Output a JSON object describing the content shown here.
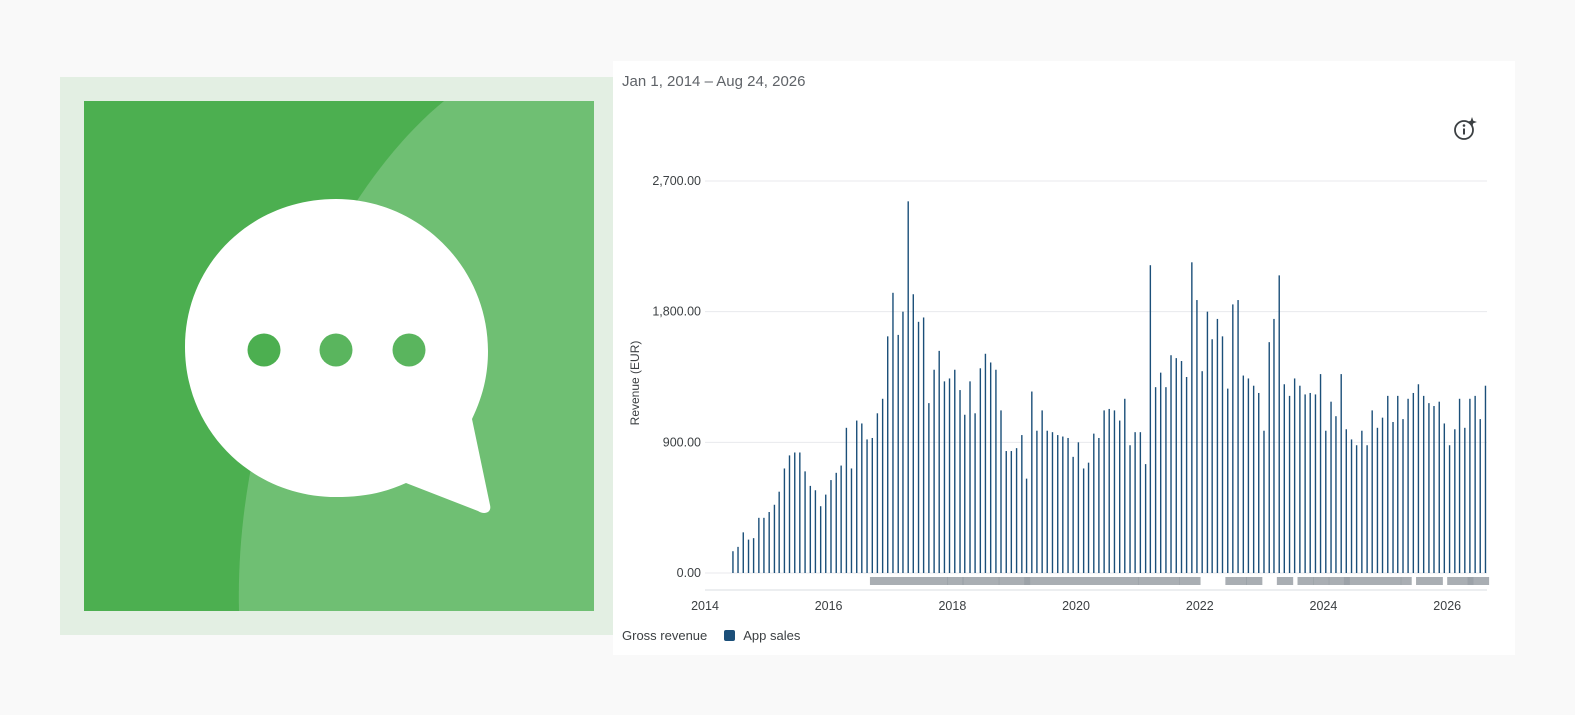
{
  "app_icon": {
    "name": "chat-bubble-icon",
    "background_color": "#4caf50",
    "bubble_color": "#ffffff",
    "dot_color": "#4caf50"
  },
  "header": {
    "date_range": "Jan 1, 2014 – Aug 24, 2026"
  },
  "insight_button": {
    "icon": "info-sparkle-icon"
  },
  "legend": {
    "title": "Gross revenue",
    "items": [
      {
        "label": "App sales",
        "color": "#1b4f79"
      }
    ]
  },
  "chart_data": {
    "type": "bar",
    "ylabel": "Revenue (EUR)",
    "xlabel": "",
    "ylim": [
      0,
      2700
    ],
    "yticks": [
      "0.00",
      "900.00",
      "1,800.00",
      "2,700.00"
    ],
    "ytick_values": [
      0,
      900,
      1800,
      2700
    ],
    "xticks": [
      "2014",
      "2016",
      "2018",
      "2020",
      "2022",
      "2024",
      "2026"
    ],
    "x_range": [
      "2014-01-01",
      "2026-08-24"
    ],
    "grid": true,
    "series": [
      {
        "name": "App sales",
        "color": "#1b4f79",
        "x": [
          "2014-06",
          "2014-07",
          "2014-08",
          "2014-09",
          "2014-10",
          "2014-11",
          "2014-12",
          "2015-01",
          "2015-02",
          "2015-03",
          "2015-04",
          "2015-05",
          "2015-06",
          "2015-07",
          "2015-08",
          "2015-09",
          "2015-10",
          "2015-11",
          "2015-12",
          "2016-01",
          "2016-02",
          "2016-03",
          "2016-04",
          "2016-05",
          "2016-06",
          "2016-07",
          "2016-08",
          "2016-09",
          "2016-10",
          "2016-11",
          "2016-12",
          "2017-01",
          "2017-02",
          "2017-03",
          "2017-04",
          "2017-05",
          "2017-06",
          "2017-07",
          "2017-08",
          "2017-09",
          "2017-10",
          "2017-11",
          "2017-12",
          "2018-01",
          "2018-02",
          "2018-03",
          "2018-04",
          "2018-05",
          "2018-06",
          "2018-07",
          "2018-08",
          "2018-09",
          "2018-10",
          "2018-11",
          "2018-12",
          "2019-01",
          "2019-02",
          "2019-03",
          "2019-04",
          "2019-05",
          "2019-06",
          "2019-07",
          "2019-08",
          "2019-09",
          "2019-10",
          "2019-11",
          "2019-12",
          "2020-01",
          "2020-02",
          "2020-03",
          "2020-04",
          "2020-05",
          "2020-06",
          "2020-07",
          "2020-08",
          "2020-09",
          "2020-10",
          "2020-11",
          "2020-12",
          "2021-01",
          "2021-02",
          "2021-03",
          "2021-04",
          "2021-05",
          "2021-06",
          "2021-07",
          "2021-08",
          "2021-09",
          "2021-10",
          "2021-11",
          "2021-12",
          "2022-01",
          "2022-02",
          "2022-03",
          "2022-04",
          "2022-05",
          "2022-06",
          "2022-07",
          "2022-08",
          "2022-09",
          "2022-10",
          "2022-11",
          "2022-12",
          "2023-01",
          "2023-02",
          "2023-03",
          "2023-04",
          "2023-05",
          "2023-06",
          "2023-07",
          "2023-08",
          "2023-09",
          "2023-10",
          "2023-11",
          "2023-12",
          "2024-01",
          "2024-02",
          "2024-03",
          "2024-04",
          "2024-05",
          "2024-06",
          "2024-07",
          "2024-08",
          "2024-09",
          "2024-10",
          "2024-11",
          "2024-12",
          "2025-01",
          "2025-02",
          "2025-03",
          "2025-04",
          "2025-05",
          "2025-06",
          "2025-07",
          "2025-08",
          "2025-09",
          "2025-10",
          "2025-11",
          "2025-12",
          "2026-01",
          "2026-02",
          "2026-03",
          "2026-04",
          "2026-05",
          "2026-06",
          "2026-07",
          "2026-08"
        ],
        "values": [
          150,
          180,
          280,
          230,
          240,
          380,
          380,
          420,
          470,
          560,
          720,
          810,
          830,
          830,
          700,
          600,
          570,
          460,
          540,
          640,
          690,
          740,
          1000,
          720,
          1050,
          1030,
          920,
          930,
          1100,
          1200,
          1630,
          1930,
          1640,
          1800,
          2560,
          1920,
          1730,
          1760,
          1170,
          1400,
          1530,
          1320,
          1340,
          1400,
          1260,
          1090,
          1320,
          1100,
          1410,
          1510,
          1450,
          1400,
          1120,
          840,
          840,
          860,
          950,
          650,
          1250,
          980,
          1120,
          980,
          970,
          950,
          940,
          930,
          800,
          900,
          720,
          760,
          960,
          930,
          1120,
          1130,
          1120,
          1050,
          1200,
          880,
          970,
          970,
          750,
          2120,
          1280,
          1380,
          1280,
          1500,
          1480,
          1460,
          1350,
          2140,
          1880,
          1390,
          1800,
          1610,
          1750,
          1630,
          1270,
          1850,
          1880,
          1360,
          1340,
          1290,
          1240,
          980,
          1590,
          1750,
          2050,
          1300,
          1220,
          1340,
          1290,
          1230,
          1240,
          1230,
          1370,
          980,
          1180,
          1080,
          1370,
          990,
          920,
          880,
          980,
          880,
          1120,
          1000,
          1070,
          1220,
          1040,
          1220,
          1060,
          1200,
          1240,
          1300,
          1220,
          1170,
          1150,
          1180,
          1030,
          880,
          990,
          1200,
          1000,
          1200,
          1220,
          1060,
          1290
        ]
      }
    ],
    "event_markers": [
      [
        "2016-09",
        "2017-11"
      ],
      [
        "2017-12",
        "2018-02"
      ],
      [
        "2018-03",
        "2018-09"
      ],
      [
        "2018-10",
        "2019-03"
      ],
      [
        "2019-03",
        "2020-12"
      ],
      [
        "2021-01",
        "2021-08"
      ],
      [
        "2021-09",
        "2021-12"
      ],
      [
        "2022-06",
        "2022-09"
      ],
      [
        "2022-10",
        "2022-12"
      ],
      [
        "2023-04",
        "2023-06"
      ],
      [
        "2023-08",
        "2023-10"
      ],
      [
        "2023-11",
        "2024-01"
      ],
      [
        "2024-02",
        "2024-05"
      ],
      [
        "2024-05",
        "2025-03"
      ],
      [
        "2025-04",
        "2025-05"
      ],
      [
        "2025-07",
        "2025-11"
      ],
      [
        "2026-01",
        "2026-05"
      ],
      [
        "2026-05",
        "2026-08"
      ]
    ]
  }
}
